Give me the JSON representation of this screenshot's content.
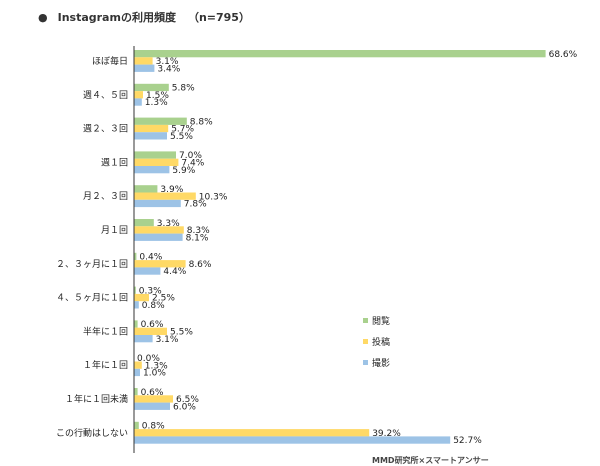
{
  "title": "Instagramの利用頻度",
  "n_label": "（n=795）",
  "source": "MMD研究所×スマートアンサー",
  "colors": {
    "series_0": "#a9d18e",
    "series_1": "#ffd966",
    "series_2": "#9dc3e6",
    "axis": "#333333"
  },
  "chart_data": {
    "type": "bar",
    "orientation": "horizontal",
    "categories": [
      "ほぼ毎日",
      "週４、５回",
      "週２、３回",
      "週１回",
      "月２、３回",
      "月１回",
      "２、３ヶ月に１回",
      "４、５ヶ月に１回",
      "半年に１回",
      "１年に１回",
      "１年に１回未満",
      "この行動はしない"
    ],
    "series": [
      {
        "name": "閲覧",
        "values": [
          68.6,
          5.8,
          8.8,
          7.0,
          3.9,
          3.3,
          0.4,
          0.3,
          0.6,
          0.0,
          0.6,
          0.8
        ],
        "labels": [
          "68.6%",
          "5.8%",
          "8.8%",
          "7.0%",
          "3.9%",
          "3.3%",
          "0.4%",
          "0.3%",
          "0.6%",
          "0.0%",
          "0.6%",
          "0.8%"
        ]
      },
      {
        "name": "投稿",
        "values": [
          3.1,
          1.5,
          5.7,
          7.4,
          10.3,
          8.3,
          8.6,
          2.5,
          5.5,
          1.3,
          6.5,
          39.2
        ],
        "labels": [
          "3.1%",
          "1.5%",
          "5.7%",
          "7.4%",
          "10.3%",
          "8.3%",
          "8.6%",
          "2.5%",
          "5.5%",
          "1.3%",
          "6.5%",
          "39.2%"
        ]
      },
      {
        "name": "撮影",
        "values": [
          3.4,
          1.3,
          5.5,
          5.9,
          7.8,
          8.1,
          4.4,
          0.8,
          3.1,
          1.0,
          6.0,
          52.7
        ],
        "labels": [
          "3.4%",
          "1.3%",
          "5.5%",
          "5.9%",
          "7.8%",
          "8.1%",
          "4.4%",
          "0.8%",
          "3.1%",
          "1.0%",
          "6.0%",
          "52.7%"
        ]
      }
    ],
    "xlim": [
      0,
      80
    ],
    "legend": "right",
    "grid": false
  }
}
